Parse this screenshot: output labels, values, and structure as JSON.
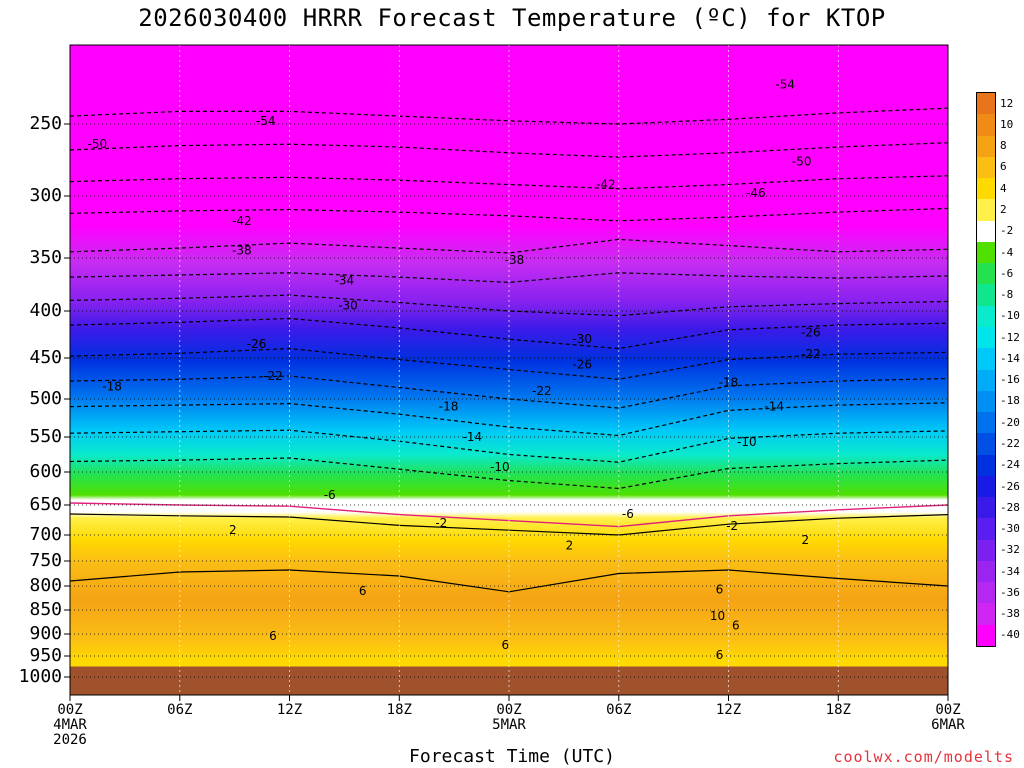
{
  "title": "2026030400 HRRR Forecast Temperature (ºC) for KTOP",
  "xlabel": "Forecast Time (UTC)",
  "credit": "coolwx.com/modelts",
  "chart_data": {
    "type": "heatmap",
    "title": "2026030400 HRRR Forecast Temperature (ºC) for KTOP",
    "xlabel": "Forecast Time (UTC)",
    "ylabel": "",
    "x_ticks": [
      {
        "hours": 0,
        "lines": [
          "00Z",
          "4MAR",
          "2026"
        ]
      },
      {
        "hours": 6,
        "lines": [
          "06Z"
        ]
      },
      {
        "hours": 12,
        "lines": [
          "12Z"
        ]
      },
      {
        "hours": 18,
        "lines": [
          "18Z"
        ]
      },
      {
        "hours": 24,
        "lines": [
          "00Z",
          "5MAR"
        ]
      },
      {
        "hours": 30,
        "lines": [
          "06Z"
        ]
      },
      {
        "hours": 36,
        "lines": [
          "12Z"
        ]
      },
      {
        "hours": 42,
        "lines": [
          "18Z"
        ]
      },
      {
        "hours": 48,
        "lines": [
          "00Z",
          "6MAR"
        ]
      }
    ],
    "xlim": [
      0,
      48
    ],
    "y_ticks": [
      250,
      300,
      350,
      400,
      450,
      500,
      550,
      600,
      650,
      700,
      750,
      800,
      850,
      900,
      950,
      1000
    ],
    "ylim": [
      200,
      1025
    ],
    "y_inverted": true,
    "grid": true,
    "colorbar": {
      "levels": [
        12,
        10,
        8,
        6,
        4,
        2,
        -2,
        -4,
        -6,
        -8,
        -10,
        -12,
        -14,
        -16,
        -18,
        -20,
        -22,
        -24,
        -26,
        -28,
        -30,
        -32,
        -34,
        -36,
        -38,
        -40
      ],
      "colors": [
        "#e8741c",
        "#f08c16",
        "#f5a314",
        "#fbbf14",
        "#ffda00",
        "#fff04a",
        "#ffffff",
        "#50e000",
        "#24e24e",
        "#10e68e",
        "#0aeacc",
        "#00e4ec",
        "#00c8f8",
        "#00acf8",
        "#0090f4",
        "#0072ee",
        "#0050e6",
        "#0030e0",
        "#1a1ae6",
        "#3a1ae8",
        "#5a1ef0",
        "#7a20f0",
        "#9c24f0",
        "#b428f2",
        "#d026f4",
        "#ff00ff"
      ]
    },
    "isotherms": [
      {
        "value": -54,
        "y": [
          245,
          242,
          242,
          245,
          248,
          250,
          247,
          243,
          240
        ]
      },
      {
        "value": -50,
        "y": [
          268,
          265,
          264,
          266,
          270,
          273,
          270,
          266,
          263
        ]
      },
      {
        "value": -46,
        "y": [
          290,
          288,
          287,
          289,
          292,
          295,
          292,
          288,
          286
        ]
      },
      {
        "value": -42,
        "y": [
          314,
          312,
          311,
          313,
          316,
          320,
          317,
          313,
          310
        ]
      },
      {
        "value": -38,
        "y": [
          345,
          342,
          338,
          342,
          346,
          335,
          340,
          345,
          343
        ]
      },
      {
        "value": -34,
        "y": [
          368,
          366,
          364,
          368,
          373,
          364,
          367,
          369,
          367
        ]
      },
      {
        "value": -30,
        "y": [
          390,
          388,
          385,
          392,
          400,
          405,
          396,
          393,
          391
        ]
      },
      {
        "value": -26,
        "y": [
          415,
          412,
          408,
          418,
          430,
          440,
          420,
          415,
          413
        ]
      },
      {
        "value": -22,
        "y": [
          448,
          445,
          440,
          452,
          464,
          476,
          452,
          446,
          444
        ]
      },
      {
        "value": -18,
        "y": [
          478,
          476,
          472,
          486,
          500,
          512,
          484,
          478,
          475
        ]
      },
      {
        "value": -14,
        "y": [
          510,
          508,
          506,
          520,
          537,
          548,
          515,
          508,
          505
        ]
      },
      {
        "value": -10,
        "y": [
          545,
          543,
          541,
          556,
          575,
          586,
          552,
          545,
          542
        ]
      },
      {
        "value": -6,
        "y": [
          585,
          583,
          580,
          596,
          613,
          625,
          595,
          588,
          583
        ]
      },
      {
        "value": 2,
        "y": [
          665,
          668,
          670,
          684,
          692,
          700,
          682,
          672,
          666
        ]
      },
      {
        "value": 6,
        "y": [
          790,
          772,
          768,
          780,
          812,
          775,
          768,
          785,
          800
        ]
      }
    ],
    "isotherm_labels": [
      {
        "text": "-54",
        "h": 10.7,
        "p": 248
      },
      {
        "text": "-54",
        "h": 39.1,
        "p": 225
      },
      {
        "text": "-50",
        "h": 1.5,
        "p": 264
      },
      {
        "text": "-50",
        "h": 40.0,
        "p": 276
      },
      {
        "text": "-46",
        "h": 37.5,
        "p": 298
      },
      {
        "text": "-42",
        "h": 9.4,
        "p": 320
      },
      {
        "text": "-42",
        "h": 29.3,
        "p": 292
      },
      {
        "text": "-38",
        "h": 9.4,
        "p": 344
      },
      {
        "text": "-38",
        "h": 24.3,
        "p": 352
      },
      {
        "text": "-34",
        "h": 15.0,
        "p": 371
      },
      {
        "text": "-30",
        "h": 15.2,
        "p": 395
      },
      {
        "text": "-30",
        "h": 28.0,
        "p": 430
      },
      {
        "text": "-26",
        "h": 10.2,
        "p": 435
      },
      {
        "text": "-26",
        "h": 28.0,
        "p": 458
      },
      {
        "text": "-26",
        "h": 40.5,
        "p": 423
      },
      {
        "text": "-22",
        "h": 11.1,
        "p": 472
      },
      {
        "text": "-22",
        "h": 25.8,
        "p": 490
      },
      {
        "text": "-22",
        "h": 40.5,
        "p": 446
      },
      {
        "text": "-18",
        "h": 2.3,
        "p": 485
      },
      {
        "text": "-18",
        "h": 20.7,
        "p": 510
      },
      {
        "text": "-18",
        "h": 36.0,
        "p": 480
      },
      {
        "text": "-14",
        "h": 22.0,
        "p": 550
      },
      {
        "text": "-14",
        "h": 38.5,
        "p": 510
      },
      {
        "text": "-10",
        "h": 23.5,
        "p": 593
      },
      {
        "text": "-10",
        "h": 37.0,
        "p": 557
      },
      {
        "text": "-6",
        "h": 14.2,
        "p": 635
      },
      {
        "text": "-6",
        "h": 30.5,
        "p": 665
      },
      {
        "text": "-2",
        "h": 20.3,
        "p": 680
      },
      {
        "text": "-2",
        "h": 36.2,
        "p": 685
      },
      {
        "text": "2",
        "h": 8.9,
        "p": 692
      },
      {
        "text": "2",
        "h": 27.3,
        "p": 720
      },
      {
        "text": "2",
        "h": 40.2,
        "p": 710
      },
      {
        "text": "6",
        "h": 16.0,
        "p": 810
      },
      {
        "text": "6",
        "h": 11.1,
        "p": 905
      },
      {
        "text": "6",
        "h": 23.8,
        "p": 925
      },
      {
        "text": "6",
        "h": 35.5,
        "p": 807
      },
      {
        "text": "6",
        "h": 36.4,
        "p": 882
      },
      {
        "text": "6",
        "h": 35.5,
        "p": 948
      },
      {
        "text": "10",
        "h": 35.4,
        "p": 862
      }
    ],
    "ground_level_hpa": 975
  }
}
